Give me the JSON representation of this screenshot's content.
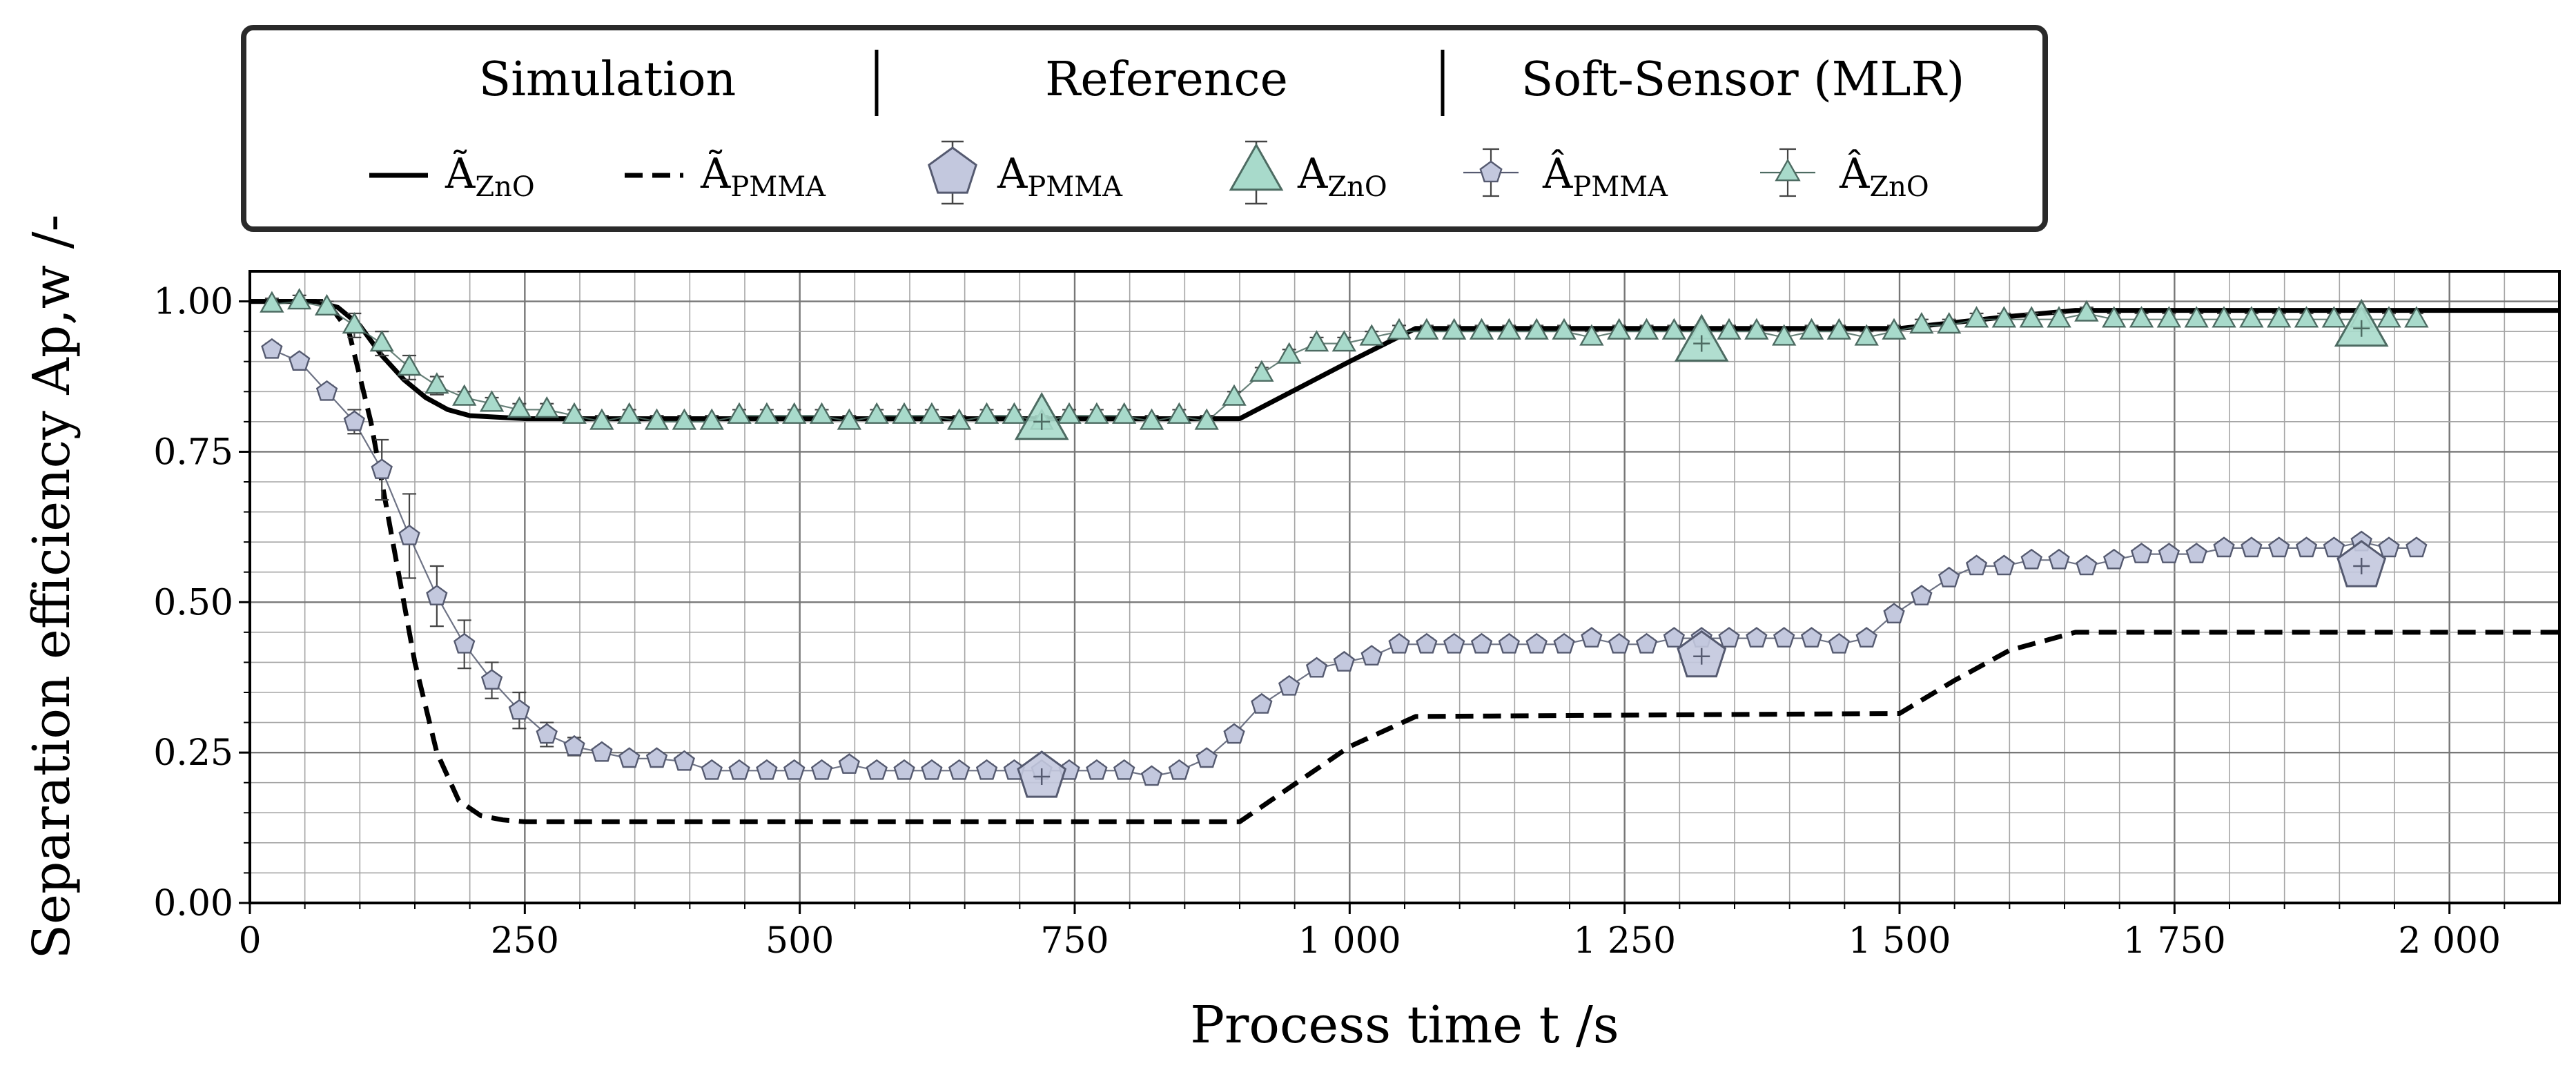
{
  "chart_data": {
    "type": "line",
    "xlabel": "Process time t /s",
    "ylabel": "Separation efficiency Ap,w /-",
    "xlim": [
      0,
      2100
    ],
    "ylim": [
      0,
      1.05
    ],
    "x_ticks": [
      0,
      250,
      500,
      750,
      1000,
      1250,
      1500,
      1750,
      2000
    ],
    "x_tick_labels": [
      "0",
      "250",
      "500",
      "750",
      "1 000",
      "1 250",
      "1 500",
      "1 750",
      "2 000"
    ],
    "y_ticks": [
      0,
      0.25,
      0.5,
      0.75,
      1.0
    ],
    "y_tick_labels": [
      "0.00",
      "0.25",
      "0.50",
      "0.75",
      "1.00"
    ],
    "grid": true,
    "legend": {
      "placement": "top",
      "groups": [
        "Simulation",
        "Reference",
        "Soft-Sensor (MLR)"
      ],
      "entries": [
        {
          "symbol": "Ã",
          "sub": "ZnO"
        },
        {
          "symbol": "Ã",
          "sub": "PMMA"
        },
        {
          "symbol": "A",
          "sub": "PMMA"
        },
        {
          "symbol": "A",
          "sub": "ZnO"
        },
        {
          "symbol": "Â",
          "sub": "PMMA"
        },
        {
          "symbol": "Â",
          "sub": "ZnO"
        }
      ]
    },
    "colors": {
      "pmma_fill": "#c3c8de",
      "pmma_edge": "#555a70",
      "zno_fill": "#a8dacb",
      "zno_edge": "#4d6b62",
      "line": "#000000",
      "grid": "#9a9a9a"
    },
    "series": [
      {
        "name": "Simulation ZnO",
        "style": "solid",
        "x": [
          0,
          60,
          80,
          100,
          120,
          140,
          160,
          180,
          200,
          250,
          900,
          1000,
          1060,
          1500,
          1550,
          1600,
          1660,
          2100
        ],
        "y": [
          1.0,
          1.0,
          0.99,
          0.96,
          0.91,
          0.87,
          0.84,
          0.82,
          0.81,
          0.805,
          0.805,
          0.9,
          0.955,
          0.955,
          0.965,
          0.975,
          0.985,
          0.985
        ]
      },
      {
        "name": "Simulation PMMA",
        "style": "dashed",
        "x": [
          0,
          70,
          90,
          110,
          130,
          150,
          170,
          190,
          210,
          230,
          250,
          900,
          1000,
          1060,
          1500,
          1550,
          1600,
          1660,
          2100
        ],
        "y": [
          1.0,
          1.0,
          0.95,
          0.8,
          0.6,
          0.4,
          0.25,
          0.17,
          0.145,
          0.138,
          0.135,
          0.135,
          0.26,
          0.31,
          0.315,
          0.37,
          0.42,
          0.45,
          0.45
        ]
      },
      {
        "name": "Reference PMMA",
        "style": "marker-large-pentagon",
        "x": [
          720,
          1320,
          1920
        ],
        "y": [
          0.21,
          0.41,
          0.56
        ]
      },
      {
        "name": "Reference ZnO",
        "style": "marker-large-triangle",
        "x": [
          720,
          1320,
          1920
        ],
        "y": [
          0.8,
          0.93,
          0.955
        ]
      },
      {
        "name": "Soft-Sensor PMMA",
        "style": "marker-small-pentagon",
        "x": [
          20,
          45,
          70,
          95,
          120,
          145,
          170,
          195,
          220,
          245,
          270,
          295,
          320,
          345,
          370,
          395,
          420,
          445,
          470,
          495,
          520,
          545,
          570,
          595,
          620,
          645,
          670,
          695,
          720,
          745,
          770,
          795,
          820,
          845,
          870,
          895,
          920,
          945,
          970,
          995,
          1020,
          1045,
          1070,
          1095,
          1120,
          1145,
          1170,
          1195,
          1220,
          1245,
          1270,
          1295,
          1320,
          1345,
          1370,
          1395,
          1420,
          1445,
          1470,
          1495,
          1520,
          1545,
          1570,
          1595,
          1620,
          1645,
          1670,
          1695,
          1720,
          1745,
          1770,
          1795,
          1820,
          1845,
          1870,
          1895,
          1920,
          1945,
          1970
        ],
        "y": [
          0.92,
          0.9,
          0.85,
          0.8,
          0.72,
          0.61,
          0.51,
          0.43,
          0.37,
          0.32,
          0.28,
          0.26,
          0.25,
          0.24,
          0.24,
          0.235,
          0.22,
          0.22,
          0.22,
          0.22,
          0.22,
          0.23,
          0.22,
          0.22,
          0.22,
          0.22,
          0.22,
          0.22,
          0.22,
          0.22,
          0.22,
          0.22,
          0.21,
          0.22,
          0.24,
          0.28,
          0.33,
          0.36,
          0.39,
          0.4,
          0.41,
          0.43,
          0.43,
          0.43,
          0.43,
          0.43,
          0.43,
          0.43,
          0.44,
          0.43,
          0.43,
          0.44,
          0.44,
          0.44,
          0.44,
          0.44,
          0.44,
          0.43,
          0.44,
          0.48,
          0.51,
          0.54,
          0.56,
          0.56,
          0.57,
          0.57,
          0.56,
          0.57,
          0.58,
          0.58,
          0.58,
          0.59,
          0.59,
          0.59,
          0.59,
          0.59,
          0.6,
          0.59,
          0.59
        ],
        "err": [
          0.01,
          0.01,
          0.01,
          0.02,
          0.05,
          0.07,
          0.05,
          0.04,
          0.03,
          0.03,
          0.02,
          0.015,
          0.01,
          0.01,
          0.01,
          0.01,
          0.01,
          0.01,
          0.01,
          0.01,
          0.01,
          0.01,
          0.01,
          0.01,
          0.01,
          0.01,
          0.01,
          0.01,
          0.01,
          0.01,
          0.01,
          0.01,
          0.01,
          0.01,
          0.01,
          0.01,
          0.01,
          0.01,
          0.01,
          0.01,
          0.01,
          0.01,
          0.01,
          0.01,
          0.01,
          0.01,
          0.01,
          0.01,
          0.01,
          0.01,
          0.01,
          0.01,
          0.01,
          0.01,
          0.01,
          0.01,
          0.01,
          0.01,
          0.01,
          0.01,
          0.01,
          0.01,
          0.01,
          0.01,
          0.01,
          0.01,
          0.01,
          0.01,
          0.01,
          0.01,
          0.01,
          0.01,
          0.01,
          0.01,
          0.01,
          0.01,
          0.01,
          0.01,
          0.01
        ]
      },
      {
        "name": "Soft-Sensor ZnO",
        "style": "marker-small-triangle",
        "x": [
          20,
          45,
          70,
          95,
          120,
          145,
          170,
          195,
          220,
          245,
          270,
          295,
          320,
          345,
          370,
          395,
          420,
          445,
          470,
          495,
          520,
          545,
          570,
          595,
          620,
          645,
          670,
          695,
          720,
          745,
          770,
          795,
          820,
          845,
          870,
          895,
          920,
          945,
          970,
          995,
          1020,
          1045,
          1070,
          1095,
          1120,
          1145,
          1170,
          1195,
          1220,
          1245,
          1270,
          1295,
          1320,
          1345,
          1370,
          1395,
          1420,
          1445,
          1470,
          1495,
          1520,
          1545,
          1570,
          1595,
          1620,
          1645,
          1670,
          1695,
          1720,
          1745,
          1770,
          1795,
          1820,
          1845,
          1870,
          1895,
          1920,
          1945,
          1970
        ],
        "y": [
          0.995,
          1.0,
          0.99,
          0.96,
          0.93,
          0.89,
          0.86,
          0.84,
          0.83,
          0.82,
          0.82,
          0.81,
          0.8,
          0.81,
          0.8,
          0.8,
          0.8,
          0.81,
          0.81,
          0.81,
          0.81,
          0.8,
          0.81,
          0.81,
          0.81,
          0.8,
          0.81,
          0.81,
          0.8,
          0.81,
          0.81,
          0.81,
          0.8,
          0.81,
          0.8,
          0.84,
          0.88,
          0.91,
          0.93,
          0.93,
          0.94,
          0.95,
          0.95,
          0.95,
          0.95,
          0.95,
          0.95,
          0.95,
          0.94,
          0.95,
          0.95,
          0.95,
          0.95,
          0.95,
          0.95,
          0.94,
          0.95,
          0.95,
          0.94,
          0.95,
          0.96,
          0.96,
          0.97,
          0.97,
          0.97,
          0.97,
          0.98,
          0.97,
          0.97,
          0.97,
          0.97,
          0.97,
          0.97,
          0.97,
          0.97,
          0.97,
          0.97,
          0.97,
          0.97
        ],
        "err": [
          0.01,
          0.01,
          0.01,
          0.02,
          0.02,
          0.02,
          0.015,
          0.01,
          0.01,
          0.01,
          0.01,
          0.01,
          0.01,
          0.01,
          0.01,
          0.01,
          0.01,
          0.01,
          0.01,
          0.01,
          0.01,
          0.01,
          0.01,
          0.01,
          0.01,
          0.01,
          0.01,
          0.01,
          0.01,
          0.01,
          0.01,
          0.01,
          0.01,
          0.01,
          0.01,
          0.01,
          0.01,
          0.01,
          0.01,
          0.01,
          0.01,
          0.01,
          0.01,
          0.01,
          0.01,
          0.01,
          0.01,
          0.01,
          0.01,
          0.01,
          0.01,
          0.01,
          0.01,
          0.01,
          0.01,
          0.01,
          0.01,
          0.01,
          0.01,
          0.01,
          0.01,
          0.01,
          0.01,
          0.01,
          0.01,
          0.01,
          0.01,
          0.01,
          0.01,
          0.01,
          0.01,
          0.01,
          0.01,
          0.01,
          0.01,
          0.01,
          0.01,
          0.01,
          0.01
        ]
      }
    ]
  }
}
